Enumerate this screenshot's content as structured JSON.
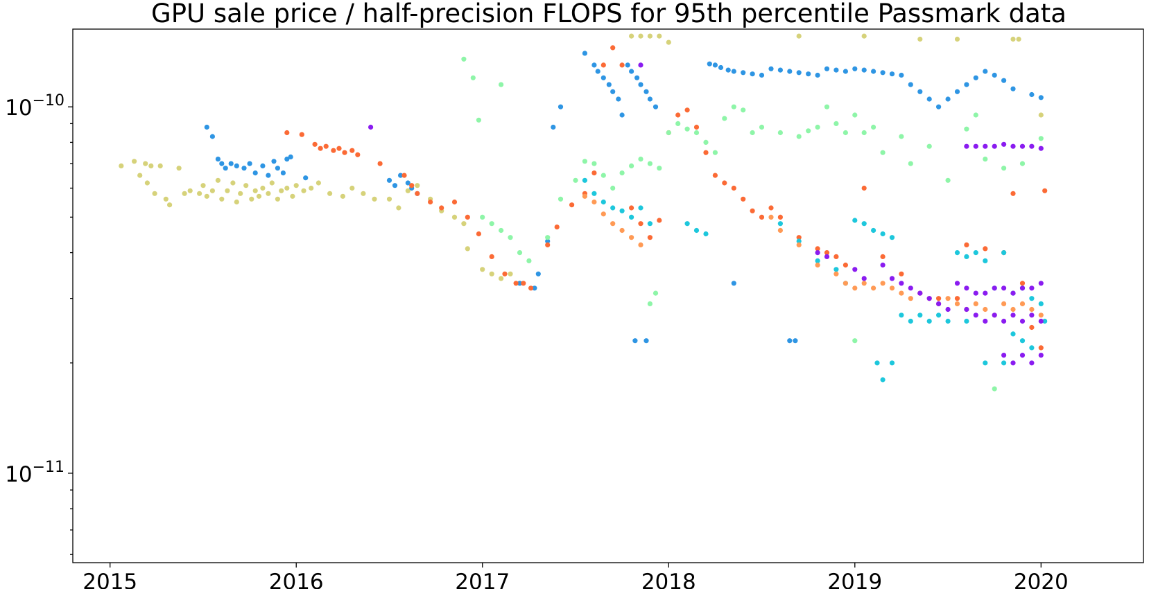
{
  "chart_data": {
    "type": "scatter",
    "title": "GPU sale price / half-precision FLOPS for 95th percentile Passmark data",
    "xlabel": "",
    "ylabel": "",
    "xlim": [
      2014.8,
      2020.55
    ],
    "ylim": [
      5.7e-12,
      1.63e-10
    ],
    "yscale": "log",
    "x_ticks": [
      "2015",
      "2016",
      "2017",
      "2018",
      "2019",
      "2020"
    ],
    "y_ticks": [
      {
        "value": 1e-10,
        "base": "10",
        "exp": "−10"
      },
      {
        "value": 1e-11,
        "base": "10",
        "exp": "−11"
      }
    ],
    "grid": false,
    "legend": "none",
    "series": [
      {
        "color": "#d6d27a",
        "x": [
          2015.06,
          2015.13,
          2015.16,
          2015.19,
          2015.2,
          2015.22,
          2015.24,
          2015.27,
          2015.3,
          2015.32,
          2015.37,
          2015.4,
          2015.43,
          2015.48,
          2015.5,
          2015.52,
          2015.55,
          2015.58,
          2015.6,
          2015.63,
          2015.66,
          2015.68,
          2015.7,
          2015.73,
          2015.76,
          2015.78,
          2015.8,
          2015.82,
          2015.85,
          2015.87,
          2015.9,
          2015.92,
          2015.95,
          2015.98,
          2016.0,
          2016.04,
          2016.08,
          2016.12,
          2016.18,
          2016.25,
          2016.3,
          2016.36,
          2016.42,
          2016.5,
          2016.55,
          2016.6,
          2016.65,
          2016.72,
          2016.78,
          2016.85,
          2016.9,
          2016.92,
          2017.0,
          2017.05,
          2017.1,
          2017.15,
          2017.2,
          2017.8,
          2017.85,
          2017.9,
          2017.95,
          2018.0,
          2018.7,
          2019.05,
          2019.35,
          2019.55,
          2019.85,
          2019.88,
          2020.0
        ],
        "y": [
          6.9e-11,
          7.1e-11,
          6.5e-11,
          7e-11,
          6.2e-11,
          6.9e-11,
          5.8e-11,
          6.9e-11,
          5.6e-11,
          5.4e-11,
          6.8e-11,
          5.8e-11,
          5.9e-11,
          5.8e-11,
          6.1e-11,
          5.7e-11,
          5.9e-11,
          6.3e-11,
          5.6e-11,
          5.9e-11,
          6.2e-11,
          5.5e-11,
          5.8e-11,
          6.1e-11,
          5.6e-11,
          5.9e-11,
          5.7e-11,
          6e-11,
          5.8e-11,
          6.2e-11,
          5.6e-11,
          5.9e-11,
          6e-11,
          5.7e-11,
          6.1e-11,
          5.9e-11,
          6e-11,
          6.2e-11,
          5.8e-11,
          5.7e-11,
          6e-11,
          5.8e-11,
          5.6e-11,
          5.6e-11,
          5.3e-11,
          5.9e-11,
          6.1e-11,
          5.6e-11,
          5.2e-11,
          5e-11,
          4.8e-11,
          4.1e-11,
          3.6e-11,
          3.5e-11,
          3.4e-11,
          3.5e-11,
          3.3e-11,
          1.56e-10,
          1.56e-10,
          1.56e-10,
          1.56e-10,
          1.5e-10,
          1.56e-10,
          1.56e-10,
          1.53e-10,
          1.53e-10,
          1.53e-10,
          1.53e-10,
          9.5e-11
        ]
      },
      {
        "color": "#2e95e3",
        "x": [
          2015.52,
          2015.55,
          2015.58,
          2015.6,
          2015.62,
          2015.65,
          2015.68,
          2015.72,
          2015.75,
          2015.78,
          2015.82,
          2015.85,
          2015.88,
          2015.9,
          2015.93,
          2015.95,
          2015.97,
          2016.05,
          2016.5,
          2016.53,
          2016.56,
          2016.6,
          2016.62,
          2016.65,
          2017.2,
          2017.28,
          2017.3,
          2017.35,
          2017.38,
          2017.42,
          2017.55,
          2017.6,
          2017.62,
          2017.65,
          2017.68,
          2017.7,
          2017.73,
          2017.75,
          2017.78,
          2017.8,
          2017.83,
          2017.85,
          2017.88,
          2017.9,
          2017.93,
          2018.22,
          2018.25,
          2018.28,
          2018.32,
          2018.35,
          2018.4,
          2018.45,
          2018.5,
          2018.55,
          2018.6,
          2018.65,
          2018.7,
          2018.75,
          2018.8,
          2018.85,
          2018.9,
          2018.95,
          2019.0,
          2019.05,
          2019.1,
          2019.15,
          2019.2,
          2019.25,
          2019.3,
          2019.35,
          2019.4,
          2019.45,
          2019.5,
          2019.55,
          2019.6,
          2019.65,
          2019.7,
          2019.75,
          2019.8,
          2019.85,
          2019.95,
          2020.0,
          2017.82,
          2017.88,
          2018.65,
          2018.68,
          2018.35
        ],
        "y": [
          8.8e-11,
          8.3e-11,
          7.2e-11,
          7e-11,
          6.8e-11,
          7e-11,
          6.9e-11,
          6.8e-11,
          7e-11,
          6.6e-11,
          6.9e-11,
          6.5e-11,
          7.1e-11,
          6.8e-11,
          6.6e-11,
          7.2e-11,
          7.3e-11,
          6.4e-11,
          6.3e-11,
          6.1e-11,
          6.5e-11,
          6.2e-11,
          6e-11,
          5.8e-11,
          3.3e-11,
          3.2e-11,
          3.5e-11,
          4.3e-11,
          8.8e-11,
          1e-10,
          1.4e-10,
          1.3e-10,
          1.25e-10,
          1.2e-10,
          1.15e-10,
          1.1e-10,
          1.05e-10,
          9.5e-11,
          1.3e-10,
          1.25e-10,
          1.2e-10,
          1.15e-10,
          1.1e-10,
          1.05e-10,
          1e-10,
          1.31e-10,
          1.3e-10,
          1.28e-10,
          1.26e-10,
          1.25e-10,
          1.24e-10,
          1.23e-10,
          1.22e-10,
          1.27e-10,
          1.26e-10,
          1.25e-10,
          1.24e-10,
          1.23e-10,
          1.22e-10,
          1.27e-10,
          1.26e-10,
          1.25e-10,
          1.27e-10,
          1.26e-10,
          1.25e-10,
          1.24e-10,
          1.23e-10,
          1.22e-10,
          1.15e-10,
          1.1e-10,
          1.05e-10,
          1e-10,
          1.05e-10,
          1.1e-10,
          1.15e-10,
          1.2e-10,
          1.25e-10,
          1.22e-10,
          1.18e-10,
          1.12e-10,
          1.08e-10,
          1.06e-10,
          2.3e-11,
          2.3e-11,
          2.3e-11,
          2.3e-11,
          3.3e-11
        ]
      },
      {
        "color": "#fb6a35",
        "x": [
          2015.95,
          2016.03,
          2016.1,
          2016.13,
          2016.16,
          2016.2,
          2016.23,
          2016.26,
          2016.3,
          2016.33,
          2016.45,
          2016.58,
          2016.62,
          2016.65,
          2016.72,
          2016.78,
          2016.85,
          2016.92,
          2016.98,
          2017.05,
          2017.12,
          2017.18,
          2017.22,
          2017.26,
          2017.35,
          2017.4,
          2017.48,
          2017.55,
          2017.6,
          2017.65,
          2017.7,
          2017.75,
          2017.8,
          2017.85,
          2017.9,
          2017.95,
          2018.0,
          2018.05,
          2018.1,
          2018.15,
          2018.2,
          2018.25,
          2018.3,
          2018.35,
          2018.4,
          2018.45,
          2018.5,
          2018.55,
          2018.6,
          2018.7,
          2018.8,
          2018.85,
          2018.9,
          2018.95,
          2019.05,
          2019.15,
          2019.25,
          2019.35,
          2019.45,
          2019.55,
          2019.6,
          2019.7,
          2019.8,
          2019.85,
          2019.9,
          2019.95,
          2020.0,
          2020.02
        ],
        "y": [
          8.5e-11,
          8.4e-11,
          7.9e-11,
          7.7e-11,
          7.8e-11,
          7.6e-11,
          7.7e-11,
          7.5e-11,
          7.6e-11,
          7.4e-11,
          7e-11,
          6.5e-11,
          6.1e-11,
          5.8e-11,
          5.5e-11,
          5.3e-11,
          5.5e-11,
          5e-11,
          4.5e-11,
          3.9e-11,
          3.5e-11,
          3.3e-11,
          3.3e-11,
          3.2e-11,
          4.2e-11,
          4.7e-11,
          5.4e-11,
          5.8e-11,
          6.6e-11,
          1.3e-10,
          1.45e-10,
          1.3e-10,
          5.3e-11,
          4.8e-11,
          4.4e-11,
          4.9e-11,
          8.5e-11,
          9.5e-11,
          9.8e-11,
          8.8e-11,
          7.5e-11,
          6.5e-11,
          6.2e-11,
          6e-11,
          5.6e-11,
          5.2e-11,
          5e-11,
          5.3e-11,
          5e-11,
          4.4e-11,
          4.1e-11,
          4e-11,
          3.9e-11,
          3.7e-11,
          6e-11,
          3.9e-11,
          3.5e-11,
          3.1e-11,
          3e-11,
          3e-11,
          4.2e-11,
          4.1e-11,
          4e-11,
          5.8e-11,
          3.3e-11,
          2.5e-11,
          2.2e-11,
          5.9e-11
        ]
      },
      {
        "color": "#8ef5a8",
        "x": [
          2016.9,
          2016.95,
          2017.0,
          2017.05,
          2017.1,
          2017.15,
          2017.2,
          2017.25,
          2017.35,
          2017.42,
          2017.5,
          2017.55,
          2017.6,
          2017.65,
          2017.7,
          2017.75,
          2017.8,
          2017.85,
          2017.9,
          2017.95,
          2018.0,
          2018.05,
          2018.1,
          2018.15,
          2018.2,
          2018.25,
          2018.3,
          2018.35,
          2018.4,
          2018.45,
          2018.5,
          2018.6,
          2018.7,
          2018.75,
          2018.8,
          2018.85,
          2018.9,
          2018.95,
          2019.0,
          2019.05,
          2019.1,
          2019.15,
          2019.25,
          2019.3,
          2019.4,
          2019.5,
          2019.6,
          2019.65,
          2019.7,
          2019.8,
          2019.9,
          2020.0,
          2016.98,
          2017.1,
          2017.9,
          2017.93,
          2019.0,
          2019.75
        ],
        "y": [
          1.35e-10,
          1.2e-10,
          5e-11,
          4.8e-11,
          4.6e-11,
          4.4e-11,
          4e-11,
          3.8e-11,
          4.4e-11,
          5.6e-11,
          6.3e-11,
          7.1e-11,
          7e-11,
          6.5e-11,
          6e-11,
          6.6e-11,
          6.9e-11,
          7.2e-11,
          7e-11,
          6.8e-11,
          8.5e-11,
          9e-11,
          8.7e-11,
          8.5e-11,
          8e-11,
          7.5e-11,
          9.3e-11,
          1e-10,
          9.8e-11,
          8.5e-11,
          8.8e-11,
          8.5e-11,
          8.3e-11,
          8.6e-11,
          8.8e-11,
          1e-10,
          9e-11,
          8.5e-11,
          9.5e-11,
          8.5e-11,
          8.8e-11,
          7.5e-11,
          8.3e-11,
          7e-11,
          7.8e-11,
          6.3e-11,
          8.7e-11,
          9.5e-11,
          7.2e-11,
          6.8e-11,
          7e-11,
          8.2e-11,
          9.2e-11,
          1.15e-10,
          2.9e-11,
          3.1e-11,
          2.3e-11,
          1.7e-11
        ]
      },
      {
        "color": "#1dc7dc",
        "x": [
          2017.55,
          2017.6,
          2017.65,
          2017.7,
          2017.75,
          2017.8,
          2017.85,
          2017.9,
          2018.1,
          2018.15,
          2018.2,
          2018.6,
          2018.7,
          2018.8,
          2018.9,
          2018.95,
          2019.0,
          2019.05,
          2019.1,
          2019.15,
          2019.2,
          2019.25,
          2019.3,
          2019.35,
          2019.4,
          2019.45,
          2019.5,
          2019.55,
          2019.6,
          2019.65,
          2019.7,
          2019.75,
          2019.8,
          2019.85,
          2019.9,
          2019.95,
          2020.0,
          2020.02,
          2019.12,
          2019.15,
          2019.2,
          2019.6,
          2019.7,
          2019.8,
          2019.85,
          2019.9,
          2019.95
        ],
        "y": [
          6.3e-11,
          5.8e-11,
          5.5e-11,
          5.3e-11,
          5.2e-11,
          5e-11,
          5.3e-11,
          4.8e-11,
          4.8e-11,
          4.6e-11,
          4.5e-11,
          4.8e-11,
          4.3e-11,
          3.8e-11,
          3.6e-11,
          3.3e-11,
          4.9e-11,
          4.8e-11,
          4.6e-11,
          4.5e-11,
          4.4e-11,
          2.7e-11,
          2.6e-11,
          2.7e-11,
          2.6e-11,
          2.7e-11,
          2.6e-11,
          4e-11,
          3.9e-11,
          4e-11,
          3.8e-11,
          3.2e-11,
          4e-11,
          3.1e-11,
          3.2e-11,
          3e-11,
          2.9e-11,
          2.6e-11,
          2e-11,
          1.8e-11,
          2e-11,
          2.6e-11,
          2e-11,
          2e-11,
          2.4e-11,
          2.3e-11,
          2.2e-11
        ]
      },
      {
        "color": "#ff9a55",
        "x": [
          2017.55,
          2017.6,
          2017.65,
          2017.7,
          2017.75,
          2017.8,
          2017.85,
          2018.55,
          2018.6,
          2018.7,
          2018.8,
          2018.9,
          2018.95,
          2019.0,
          2019.05,
          2019.1,
          2019.15,
          2019.2,
          2019.25,
          2019.3,
          2019.35,
          2019.4,
          2019.45,
          2019.5,
          2019.55,
          2019.6,
          2019.65,
          2019.7,
          2019.75,
          2019.8,
          2019.85,
          2019.9,
          2019.95,
          2020.0
        ],
        "y": [
          5.7e-11,
          5.5e-11,
          5.1e-11,
          4.8e-11,
          4.6e-11,
          4.4e-11,
          4.2e-11,
          5e-11,
          4.6e-11,
          4.2e-11,
          3.7e-11,
          3.5e-11,
          3.3e-11,
          3.2e-11,
          3.3e-11,
          3.2e-11,
          3.3e-11,
          3.2e-11,
          3.1e-11,
          3e-11,
          3.1e-11,
          3e-11,
          2.9e-11,
          3e-11,
          2.9e-11,
          2.8e-11,
          2.9e-11,
          2.8e-11,
          2.7e-11,
          2.9e-11,
          2.8e-11,
          2.9e-11,
          2.8e-11,
          2.7e-11
        ]
      },
      {
        "color": "#8a1cf0",
        "x": [
          2016.4,
          2017.85,
          2018.8,
          2018.85,
          2019.0,
          2019.05,
          2019.15,
          2019.2,
          2019.25,
          2019.3,
          2019.35,
          2019.4,
          2019.45,
          2019.5,
          2019.55,
          2019.6,
          2019.65,
          2019.7,
          2019.75,
          2019.8,
          2019.85,
          2019.9,
          2019.95,
          2020.0,
          2019.6,
          2019.65,
          2019.7,
          2019.75,
          2019.8,
          2019.85,
          2019.9,
          2019.95,
          2020.0,
          2019.6,
          2019.65,
          2019.7,
          2019.75,
          2019.8,
          2019.85,
          2019.9,
          2019.95,
          2020.0,
          2019.8,
          2019.85,
          2019.9,
          2019.95,
          2020.0
        ],
        "y": [
          8.8e-11,
          1.3e-10,
          4e-11,
          3.9e-11,
          3.6e-11,
          3.4e-11,
          3.7e-11,
          3.4e-11,
          3.3e-11,
          3.2e-11,
          3.1e-11,
          3e-11,
          2.9e-11,
          2.8e-11,
          3.3e-11,
          3.2e-11,
          3.1e-11,
          3.1e-11,
          3.2e-11,
          3.2e-11,
          3.1e-11,
          3.2e-11,
          3.2e-11,
          3.3e-11,
          2.8e-11,
          2.7e-11,
          2.6e-11,
          2.7e-11,
          2.6e-11,
          2.7e-11,
          2.6e-11,
          2.7e-11,
          2.6e-11,
          7.8e-11,
          7.8e-11,
          7.8e-11,
          7.8e-11,
          7.9e-11,
          7.8e-11,
          7.8e-11,
          7.8e-11,
          7.7e-11,
          2.1e-11,
          2e-11,
          2.1e-11,
          2e-11,
          2.1e-11
        ]
      }
    ]
  }
}
